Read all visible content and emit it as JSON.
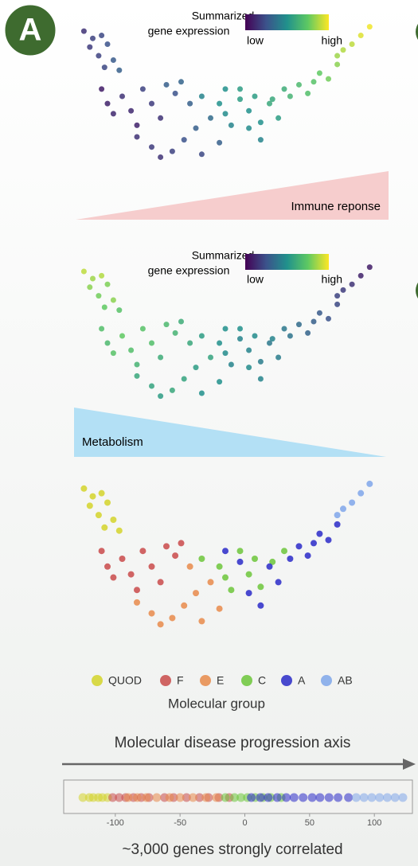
{
  "panel_label": "A",
  "chart_data": [
    {
      "type": "scatter",
      "colormap": "viridis",
      "colorbar_title": [
        "Summarized",
        "gene expression"
      ],
      "colorbar_labels": [
        "low",
        "high"
      ],
      "annotation": "Immune reponse",
      "x": [
        2,
        5,
        8,
        4,
        10,
        7,
        12,
        9,
        14,
        8,
        10,
        12,
        15,
        18,
        20,
        22,
        25,
        28,
        30,
        33,
        35,
        20,
        25,
        28,
        32,
        36,
        40,
        42,
        45,
        38,
        48,
        42,
        48,
        50,
        52,
        55,
        58,
        60,
        62,
        66,
        70,
        50,
        55,
        58,
        62,
        65,
        68,
        72,
        75,
        78,
        80,
        82,
        85,
        88,
        88,
        90,
        93,
        96,
        99
      ],
      "y": [
        95,
        90,
        92,
        84,
        86,
        78,
        75,
        70,
        68,
        55,
        45,
        38,
        50,
        40,
        30,
        55,
        45,
        35,
        58,
        52,
        60,
        22,
        15,
        8,
        12,
        20,
        28,
        10,
        35,
        45,
        18,
        50,
        45,
        38,
        30,
        55,
        40,
        50,
        32,
        48,
        55,
        55,
        48,
        28,
        20,
        45,
        35,
        50,
        58,
        52,
        60,
        66,
        62,
        72,
        78,
        82,
        86,
        92,
        98
      ],
      "values": [
        0.15,
        0.2,
        0.22,
        0.18,
        0.25,
        0.2,
        0.28,
        0.22,
        0.3,
        0.08,
        0.1,
        0.12,
        0.15,
        0.12,
        0.1,
        0.2,
        0.18,
        0.15,
        0.3,
        0.25,
        0.32,
        0.15,
        0.18,
        0.15,
        0.2,
        0.25,
        0.3,
        0.22,
        0.35,
        0.3,
        0.3,
        0.45,
        0.5,
        0.48,
        0.45,
        0.55,
        0.5,
        0.55,
        0.5,
        0.6,
        0.62,
        0.5,
        0.55,
        0.48,
        0.45,
        0.6,
        0.55,
        0.65,
        0.68,
        0.7,
        0.72,
        0.75,
        0.78,
        0.82,
        0.85,
        0.88,
        0.9,
        0.95,
        0.98
      ]
    },
    {
      "type": "scatter",
      "colormap": "viridis",
      "colorbar_title": [
        "Summarized",
        "gene expression"
      ],
      "colorbar_labels": [
        "low",
        "high"
      ],
      "annotation": "Metabolism",
      "x": [
        2,
        5,
        8,
        4,
        10,
        7,
        12,
        9,
        14,
        8,
        10,
        12,
        15,
        18,
        20,
        22,
        25,
        28,
        30,
        33,
        35,
        20,
        25,
        28,
        32,
        36,
        40,
        42,
        45,
        38,
        48,
        42,
        48,
        50,
        52,
        55,
        58,
        60,
        62,
        66,
        70,
        50,
        55,
        58,
        62,
        65,
        68,
        72,
        75,
        78,
        80,
        82,
        85,
        88,
        88,
        90,
        93,
        96,
        99
      ],
      "y": [
        95,
        90,
        92,
        84,
        86,
        78,
        75,
        70,
        68,
        55,
        45,
        38,
        50,
        40,
        30,
        55,
        45,
        35,
        58,
        52,
        60,
        22,
        15,
        8,
        12,
        20,
        28,
        10,
        35,
        45,
        18,
        50,
        45,
        38,
        30,
        55,
        40,
        50,
        32,
        48,
        55,
        55,
        48,
        28,
        20,
        45,
        35,
        50,
        58,
        52,
        60,
        66,
        62,
        72,
        78,
        82,
        86,
        92,
        98
      ],
      "values": [
        0.9,
        0.85,
        0.88,
        0.82,
        0.8,
        0.78,
        0.82,
        0.75,
        0.72,
        0.7,
        0.68,
        0.72,
        0.75,
        0.7,
        0.65,
        0.72,
        0.7,
        0.62,
        0.68,
        0.65,
        0.62,
        0.6,
        0.58,
        0.55,
        0.6,
        0.58,
        0.55,
        0.5,
        0.58,
        0.6,
        0.5,
        0.55,
        0.5,
        0.48,
        0.45,
        0.5,
        0.45,
        0.48,
        0.42,
        0.45,
        0.4,
        0.5,
        0.45,
        0.48,
        0.45,
        0.4,
        0.42,
        0.38,
        0.35,
        0.32,
        0.3,
        0.28,
        0.25,
        0.22,
        0.2,
        0.18,
        0.15,
        0.1,
        0.08
      ]
    },
    {
      "type": "scatter",
      "legend_title": "Molecular group",
      "series": [
        {
          "name": "QUOD",
          "color": "#d4d42a",
          "x": [
            2,
            5,
            8,
            4,
            10,
            7,
            12,
            9,
            14
          ],
          "y": [
            95,
            90,
            92,
            84,
            86,
            78,
            75,
            70,
            68
          ]
        },
        {
          "name": "F",
          "color": "#c94a4a",
          "x": [
            8,
            10,
            12,
            15,
            18,
            20,
            22,
            25,
            28,
            30,
            33,
            35
          ],
          "y": [
            55,
            45,
            38,
            50,
            40,
            30,
            55,
            45,
            35,
            58,
            52,
            60
          ]
        },
        {
          "name": "E",
          "color": "#e8894a",
          "x": [
            20,
            25,
            28,
            32,
            36,
            40,
            42,
            45,
            38,
            48
          ],
          "y": [
            22,
            15,
            8,
            12,
            20,
            28,
            10,
            35,
            45,
            18
          ]
        },
        {
          "name": "C",
          "color": "#6cc63a",
          "x": [
            42,
            48,
            50,
            52,
            55,
            58,
            60,
            62,
            66,
            70
          ],
          "y": [
            50,
            45,
            38,
            30,
            55,
            40,
            50,
            32,
            48,
            55
          ]
        },
        {
          "name": "A",
          "color": "#2a2ac8",
          "x": [
            50,
            55,
            58,
            62,
            65,
            68,
            72,
            75,
            78,
            80,
            82,
            85,
            88
          ],
          "y": [
            55,
            48,
            28,
            20,
            45,
            35,
            50,
            58,
            52,
            60,
            66,
            62,
            72
          ]
        },
        {
          "name": "AB",
          "color": "#7fa6ea",
          "x": [
            88,
            90,
            93,
            96,
            99
          ],
          "y": [
            78,
            82,
            86,
            92,
            98
          ]
        }
      ]
    },
    {
      "type": "strip",
      "title": "Molecular disease progression axis",
      "xlabel": "~3,000 genes strongly correlated",
      "xlim": [
        -130,
        130
      ],
      "xticks": [
        -100,
        -50,
        0,
        50,
        100
      ],
      "series": [
        {
          "name": "QUOD",
          "color": "#d4d42a",
          "values": [
            -125,
            -120,
            -117,
            -113,
            -110,
            -106
          ]
        },
        {
          "name": "F",
          "color": "#c94a4a",
          "values": [
            -102,
            -97,
            -92,
            -86,
            -80,
            -74,
            -62,
            -55,
            -45,
            -35,
            -28,
            -20,
            -12
          ]
        },
        {
          "name": "E",
          "color": "#e8894a",
          "values": [
            -90,
            -83,
            -76,
            -68,
            -58,
            -50,
            -40,
            -30,
            -22
          ]
        },
        {
          "name": "C",
          "color": "#6cc63a",
          "values": [
            -15,
            -8,
            -3,
            2,
            8,
            14,
            20,
            28
          ]
        },
        {
          "name": "A",
          "color": "#2a2ac8",
          "values": [
            5,
            12,
            18,
            25,
            32,
            38,
            45,
            52,
            58,
            65,
            72,
            80
          ]
        },
        {
          "name": "AB",
          "color": "#7fa6ea",
          "values": [
            86,
            92,
            98,
            104,
            110,
            116,
            122
          ]
        }
      ]
    }
  ]
}
